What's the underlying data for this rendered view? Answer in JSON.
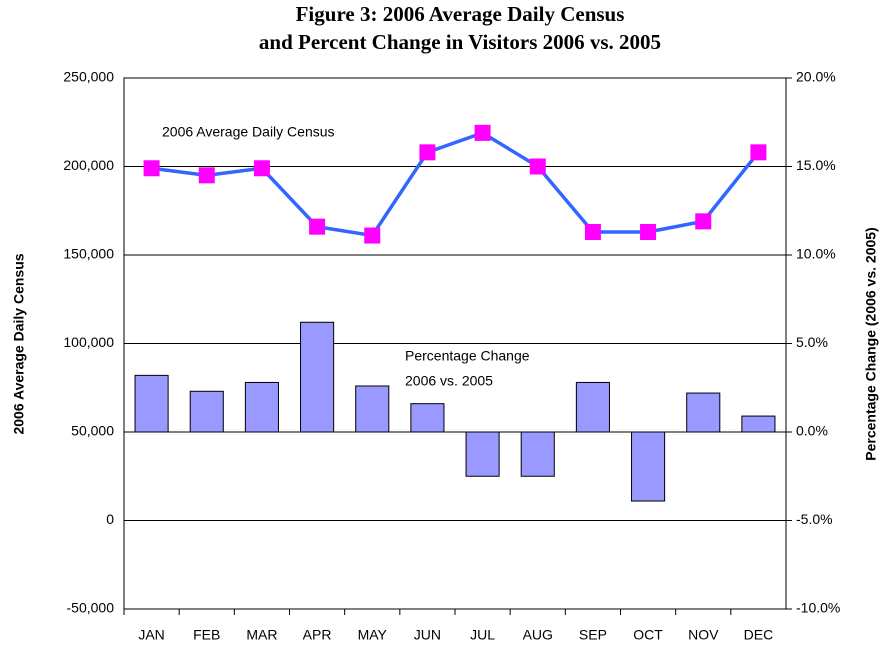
{
  "chart_data": {
    "type": "combo",
    "title": [
      "Figure 3: 2006 Average Daily Census",
      "and Percent Change in Visitors 2006 vs. 2005"
    ],
    "ylabel": "2006 Average Daily Census",
    "y2label": "Percentage Change (2006 vs. 2005)",
    "annotations": [
      "2006 Average Daily Census",
      "Percentage Change",
      "2006 vs. 2005"
    ],
    "categories": [
      "JAN",
      "FEB",
      "MAR",
      "APR",
      "MAY",
      "JUN",
      "JUL",
      "AUG",
      "SEP",
      "OCT",
      "NOV",
      "DEC"
    ],
    "series": [
      {
        "type": "line",
        "axis": "y",
        "color": "#3366ff",
        "marker_color": "#ff00ff",
        "values": [
          199000,
          195000,
          199000,
          166000,
          161000,
          208000,
          219000,
          200000,
          163000,
          163000,
          169000,
          208000
        ]
      },
      {
        "type": "bar",
        "axis": "y2",
        "color": "#9999ff",
        "values": [
          3.2,
          2.3,
          2.8,
          6.2,
          2.6,
          1.6,
          -2.5,
          -2.5,
          2.8,
          -3.9,
          2.2,
          0.9
        ]
      }
    ],
    "ylim": [
      -50000,
      250000
    ],
    "yticks": [
      {
        "value": -50000,
        "label": "-50,000"
      },
      0,
      {
        "value": 50000,
        "label": "50,000"
      },
      {
        "value": 100000,
        "label": "100,000"
      },
      {
        "value": 150000,
        "label": "150,000"
      },
      {
        "value": 200000,
        "label": "200,000"
      },
      {
        "value": 250000,
        "label": "250,000"
      }
    ],
    "y2lim": [
      -10,
      20
    ],
    "y2ticks": [
      {
        "value": -10,
        "label": "-10.0%"
      },
      {
        "value": -5,
        "label": "-5.0%"
      },
      {
        "value": 0,
        "label": "0.0%"
      },
      {
        "value": 5,
        "label": "5.0%"
      },
      {
        "value": 10,
        "label": "10.0%"
      },
      {
        "value": 15,
        "label": "15.0%"
      },
      {
        "value": 20,
        "label": "20.0%"
      }
    ],
    "grid": true
  }
}
